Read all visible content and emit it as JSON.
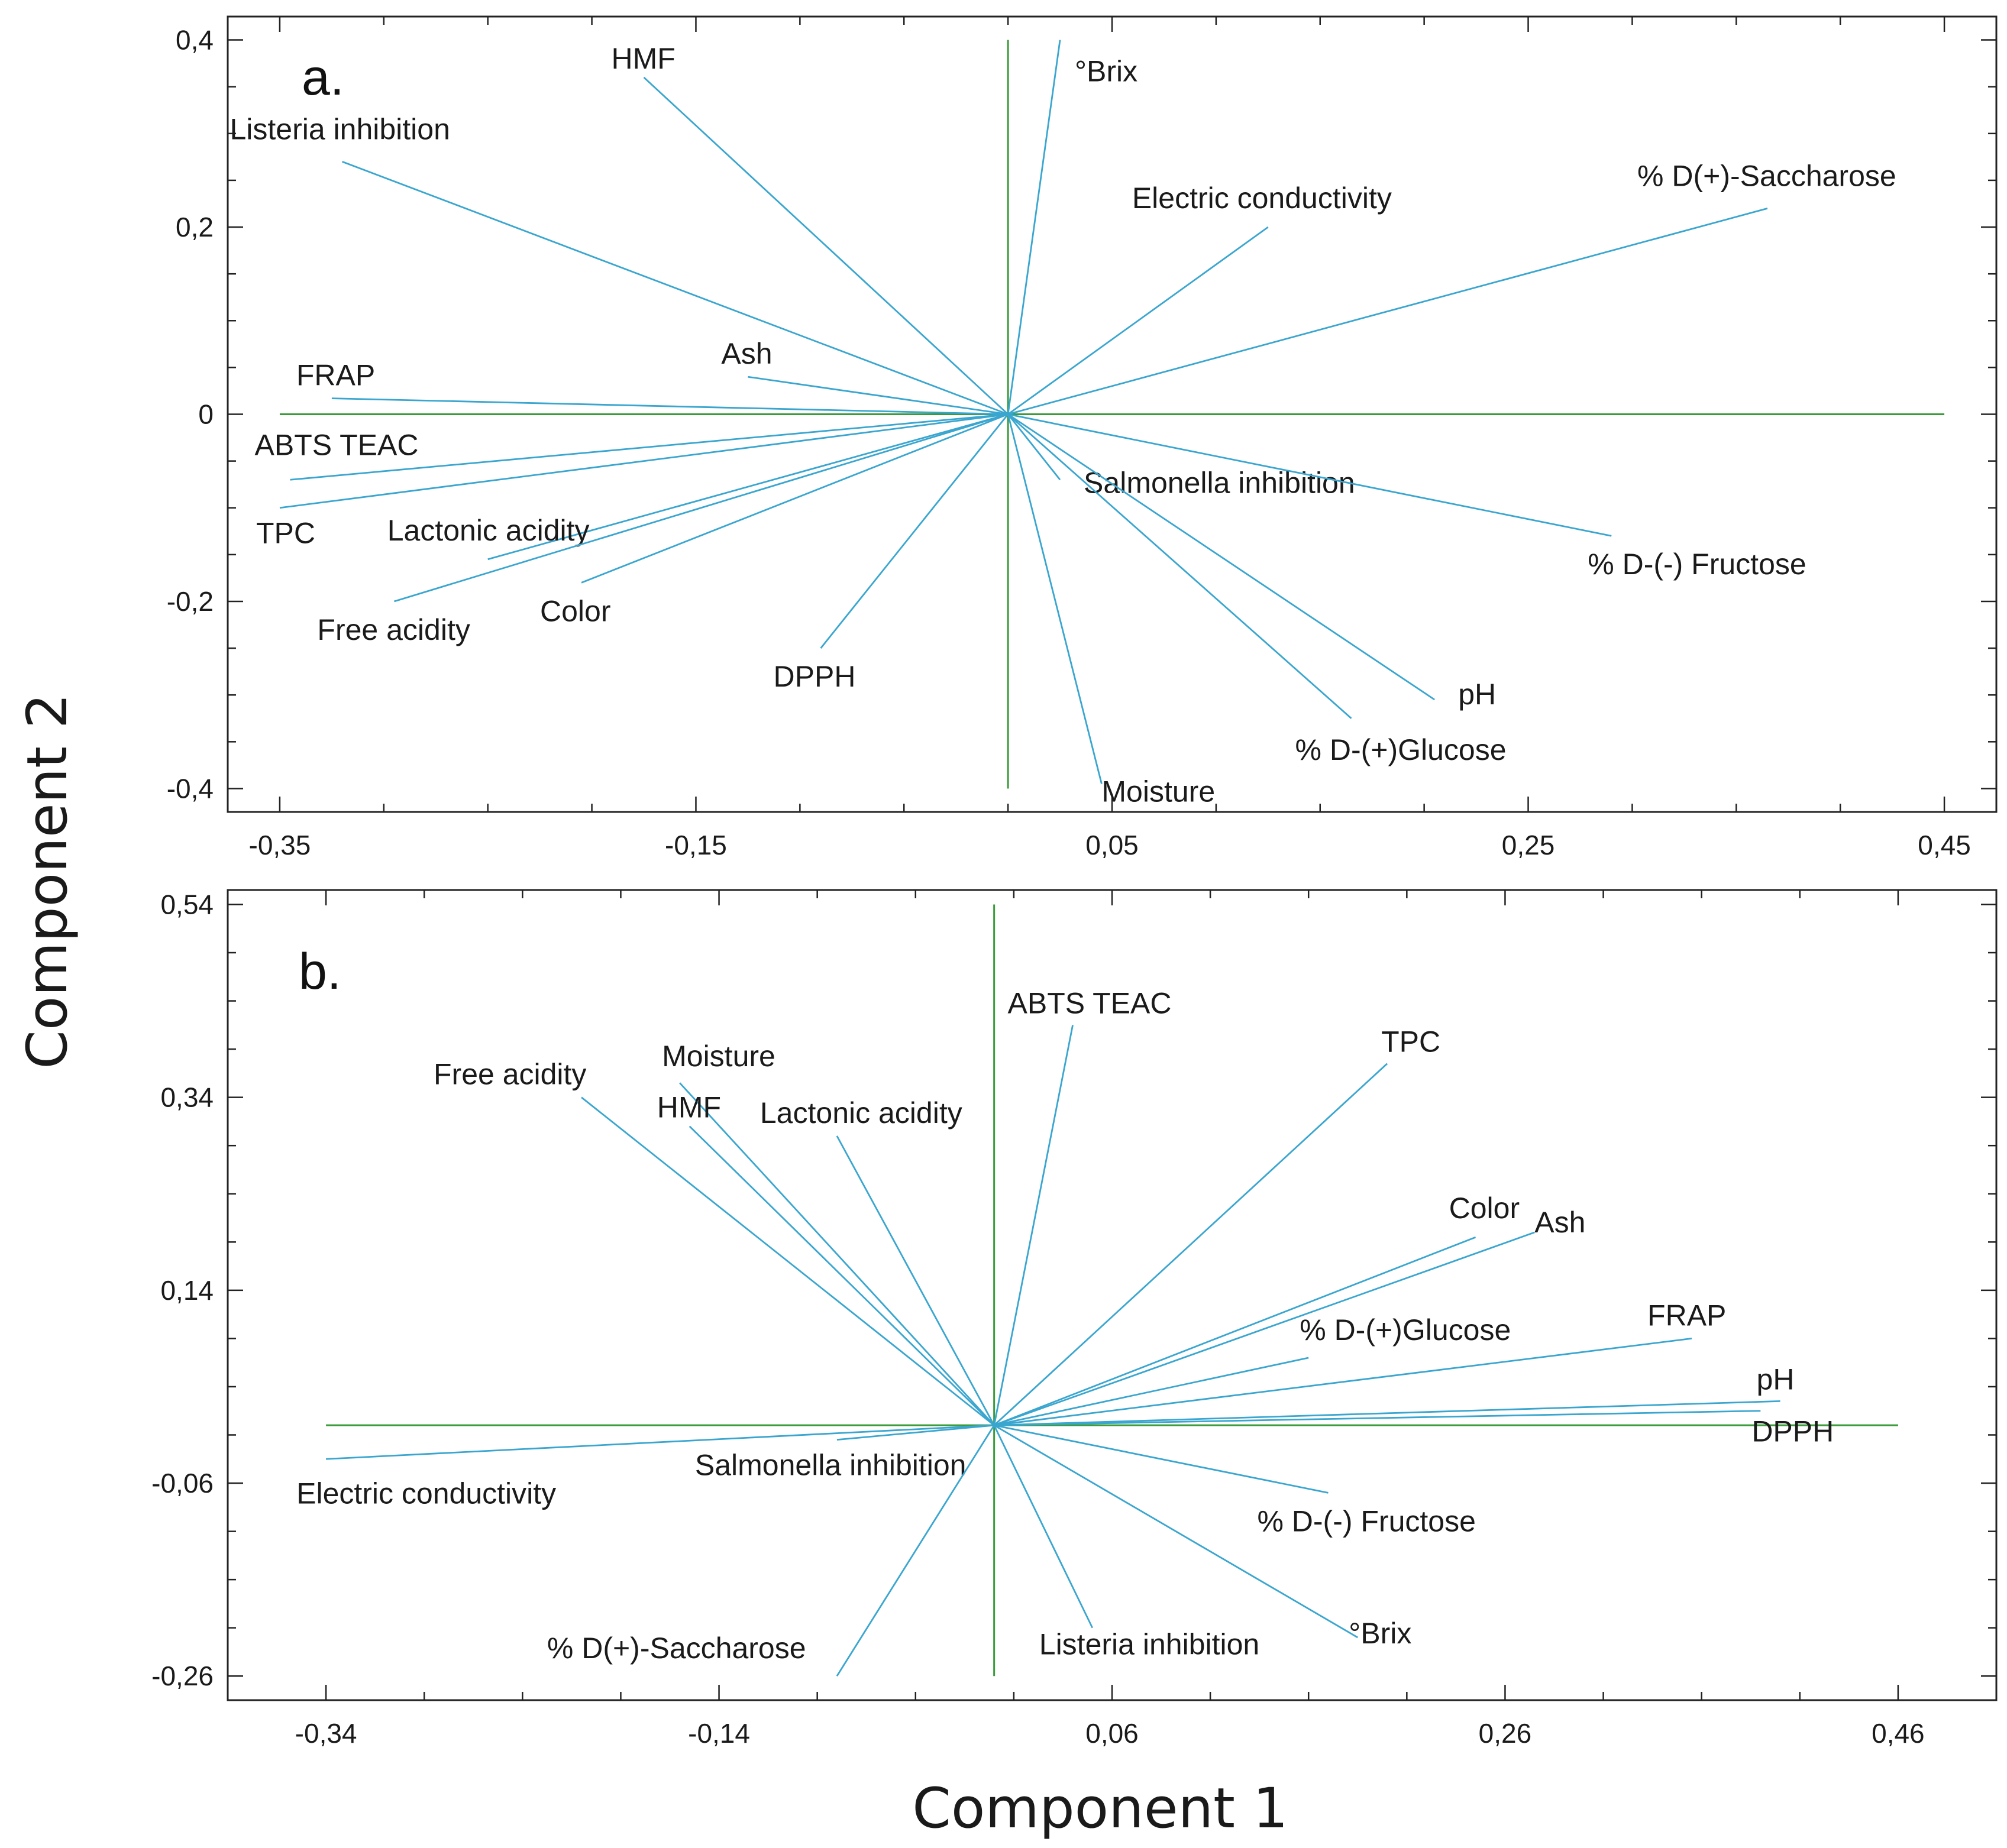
{
  "figure": {
    "xlabel": "Component 1",
    "ylabel": "Component 2"
  },
  "colors": {
    "vector": "#3aa6cf",
    "zero_line": "#3a9b3a",
    "frame": "#222222",
    "text": "#1a1a1a"
  },
  "chart_data": [
    {
      "type": "biplot",
      "panel_label": "a.",
      "xlim": [
        -0.375,
        0.475
      ],
      "ylim": [
        -0.425,
        0.425
      ],
      "xticks": [
        -0.35,
        -0.15,
        0.05,
        0.25,
        0.45
      ],
      "xtick_labels": [
        "-0,35",
        "-0,15",
        "0,05",
        "0,25",
        "0,45"
      ],
      "yticks": [
        -0.4,
        -0.2,
        0,
        0.2,
        0.4
      ],
      "ytick_labels": [
        "-0,4",
        "-0,2",
        "0",
        "0,2",
        "0,4"
      ],
      "vectors": [
        {
          "name": "HMF",
          "x": -0.175,
          "y": 0.36
        },
        {
          "name": "°Brix",
          "x": 0.025,
          "y": 0.4
        },
        {
          "name": "Listeria inhibition",
          "x": -0.32,
          "y": 0.27
        },
        {
          "name": "Electric conductivity",
          "x": 0.125,
          "y": 0.2
        },
        {
          "name": "% D(+)-Saccharose",
          "x": 0.365,
          "y": 0.22
        },
        {
          "name": "Ash",
          "x": -0.125,
          "y": 0.04
        },
        {
          "name": "FRAP",
          "x": -0.325,
          "y": 0.017
        },
        {
          "name": "ABTS TEAC",
          "x": -0.345,
          "y": -0.07
        },
        {
          "name": "TPC",
          "x": -0.35,
          "y": -0.1
        },
        {
          "name": "Lactonic acidity",
          "x": -0.25,
          "y": -0.155
        },
        {
          "name": "Free acidity",
          "x": -0.295,
          "y": -0.2
        },
        {
          "name": "Color",
          "x": -0.205,
          "y": -0.18
        },
        {
          "name": "DPPH",
          "x": -0.09,
          "y": -0.25
        },
        {
          "name": "Salmonella inhibition",
          "x": 0.025,
          "y": -0.07
        },
        {
          "name": "% D-(-) Fructose",
          "x": 0.29,
          "y": -0.13
        },
        {
          "name": "pH",
          "x": 0.205,
          "y": -0.305
        },
        {
          "name": "% D-(+)Glucose",
          "x": 0.165,
          "y": -0.325
        },
        {
          "name": "Moisture",
          "x": 0.045,
          "y": -0.395
        }
      ]
    },
    {
      "type": "biplot",
      "panel_label": "b.",
      "xlim": [
        -0.39,
        0.51
      ],
      "ylim": [
        -0.285,
        0.555
      ],
      "xticks": [
        -0.34,
        -0.14,
        0.06,
        0.26,
        0.46
      ],
      "xtick_labels": [
        "-0,34",
        "-0,14",
        "0,06",
        "0,26",
        "0,46"
      ],
      "yticks": [
        -0.26,
        -0.06,
        0.14,
        0.34,
        0.54
      ],
      "ytick_labels": [
        "-0,26",
        "-0,06",
        "0,14",
        "0,34",
        "0,54"
      ],
      "vectors": [
        {
          "name": "ABTS TEAC",
          "x": 0.04,
          "y": 0.415
        },
        {
          "name": "TPC",
          "x": 0.2,
          "y": 0.375
        },
        {
          "name": "Free acidity",
          "x": -0.21,
          "y": 0.34
        },
        {
          "name": "Moisture",
          "x": -0.16,
          "y": 0.355
        },
        {
          "name": "HMF",
          "x": -0.155,
          "y": 0.31
        },
        {
          "name": "Lactonic acidity",
          "x": -0.08,
          "y": 0.3
        },
        {
          "name": "Color",
          "x": 0.245,
          "y": 0.195
        },
        {
          "name": "Ash",
          "x": 0.275,
          "y": 0.2
        },
        {
          "name": "% D-(+)Glucose",
          "x": 0.16,
          "y": 0.07
        },
        {
          "name": "FRAP",
          "x": 0.355,
          "y": 0.09
        },
        {
          "name": "pH",
          "x": 0.4,
          "y": 0.025
        },
        {
          "name": "DPPH",
          "x": 0.39,
          "y": 0.015
        },
        {
          "name": "Electric conductivity",
          "x": -0.34,
          "y": -0.035
        },
        {
          "name": "Salmonella inhibition",
          "x": -0.08,
          "y": -0.015
        },
        {
          "name": "% D-(-) Fructose",
          "x": 0.17,
          "y": -0.07
        },
        {
          "name": "°Brix",
          "x": 0.185,
          "y": -0.22
        },
        {
          "name": "Listeria inhibition",
          "x": 0.05,
          "y": -0.21
        },
        {
          "name": "% D(+)-Saccharose",
          "x": -0.08,
          "y": -0.26
        }
      ]
    }
  ]
}
